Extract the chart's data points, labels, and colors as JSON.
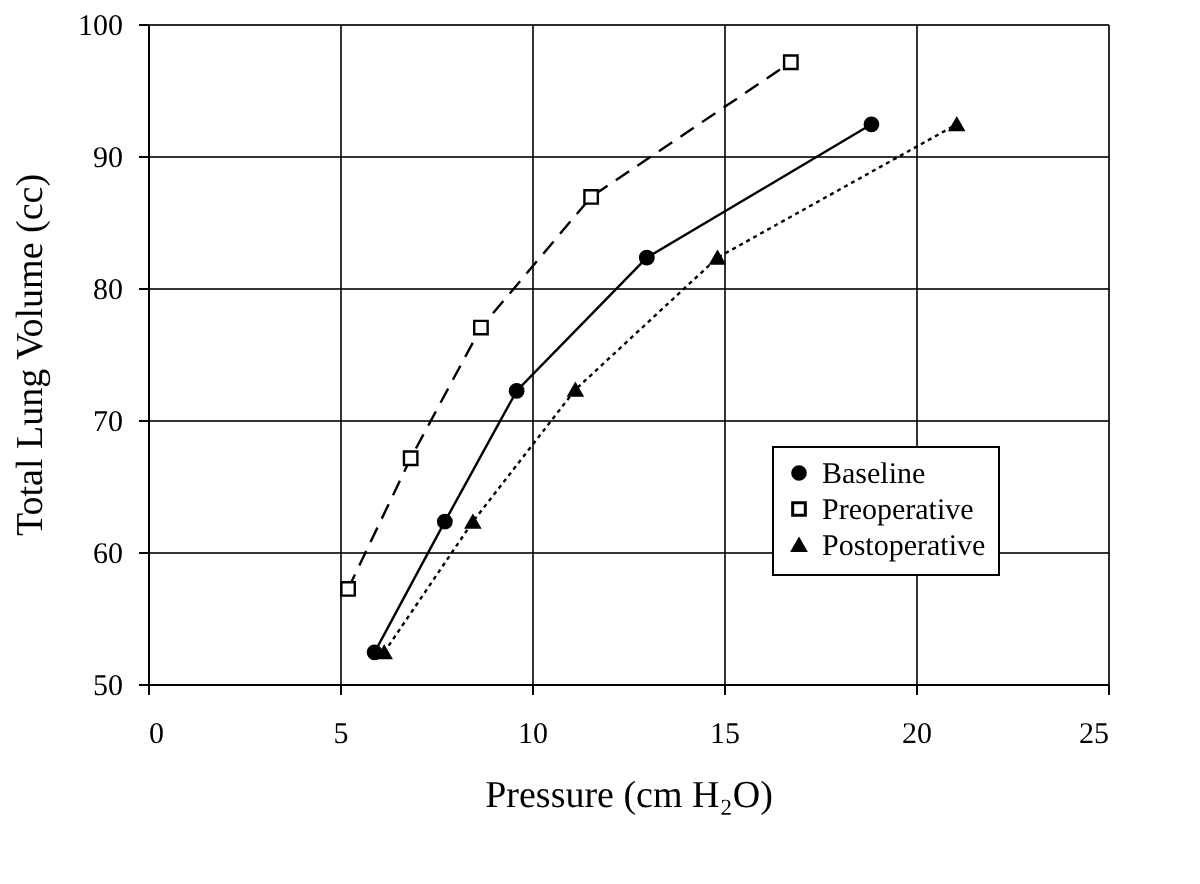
{
  "chart_data": {
    "type": "line",
    "xlabel": "Pressure (cm H₂O)",
    "ylabel": "Total Lung Volume (cc)",
    "xlim": [
      0,
      25
    ],
    "xticks": [
      0,
      5,
      10,
      15,
      20,
      25
    ],
    "ylim": [
      50,
      100
    ],
    "yticks": [
      50,
      60,
      70,
      80,
      90,
      100
    ],
    "grid": true,
    "legend": "bottom right",
    "series": [
      {
        "name": "Baseline",
        "color": "#000000",
        "marker": "circle",
        "line_style": "solid",
        "x": [
          5.9,
          7.73,
          9.6,
          12.99,
          18.84
        ],
        "values": [
          52.4,
          62.3,
          72.2,
          82.3,
          92.4
        ]
      },
      {
        "name": "Preoperative",
        "color": "#000000",
        "marker": "square",
        "line_style": "dashed",
        "x": [
          5.21,
          6.84,
          8.67,
          11.54,
          16.74
        ],
        "values": [
          57.2,
          67.1,
          77.0,
          86.9,
          97.1
        ]
      },
      {
        "name": "Postoperative",
        "color": "#000000",
        "marker": "triangle",
        "line_style": "dotted",
        "x": [
          6.15,
          8.46,
          11.13,
          14.83,
          21.06
        ],
        "values": [
          52.4,
          62.3,
          72.3,
          82.3,
          92.4
        ]
      }
    ]
  }
}
